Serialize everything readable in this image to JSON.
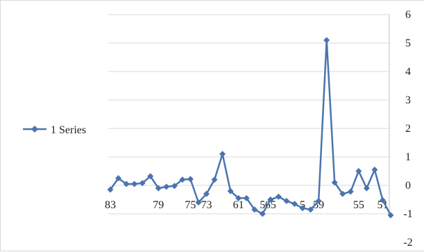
{
  "chart_data": {
    "type": "line",
    "series": [
      {
        "name": "1 Series",
        "color": "#4a74ae",
        "marker": "diamond",
        "values": [
          -0.15,
          0.25,
          0.05,
          0.05,
          0.08,
          0.32,
          -0.1,
          -0.05,
          -0.02,
          0.2,
          0.22,
          -0.6,
          -0.3,
          0.2,
          1.1,
          -0.2,
          -0.45,
          -0.45,
          -0.85,
          -1.0,
          -0.5,
          -0.4,
          -0.55,
          -0.65,
          -0.8,
          -0.85,
          -0.55,
          5.1,
          0.1,
          -0.3,
          -0.22,
          0.5,
          -0.1,
          0.55,
          -0.52,
          -1.05
        ]
      }
    ],
    "x_tick_labels": [
      {
        "index": 0,
        "label": "83"
      },
      {
        "index": 6,
        "label": "79"
      },
      {
        "index": 10,
        "label": "75"
      },
      {
        "index": 12,
        "label": "73"
      },
      {
        "index": 16,
        "label": "61"
      },
      {
        "index": 19,
        "label": "5"
      },
      {
        "index": 20,
        "label": "65"
      },
      {
        "index": 24,
        "label": "5"
      },
      {
        "index": 26,
        "label": "59"
      },
      {
        "index": 31,
        "label": "55"
      },
      {
        "index": 34,
        "label": "51"
      }
    ],
    "y_ticks": [
      6,
      5,
      4,
      3,
      2,
      1,
      0,
      -1
    ],
    "y_extra_labels": [
      {
        "value": -2,
        "label": "-2"
      }
    ],
    "ylim": [
      -2,
      6
    ],
    "y_axis_side": "right",
    "grid": true,
    "legend_position": "left"
  }
}
